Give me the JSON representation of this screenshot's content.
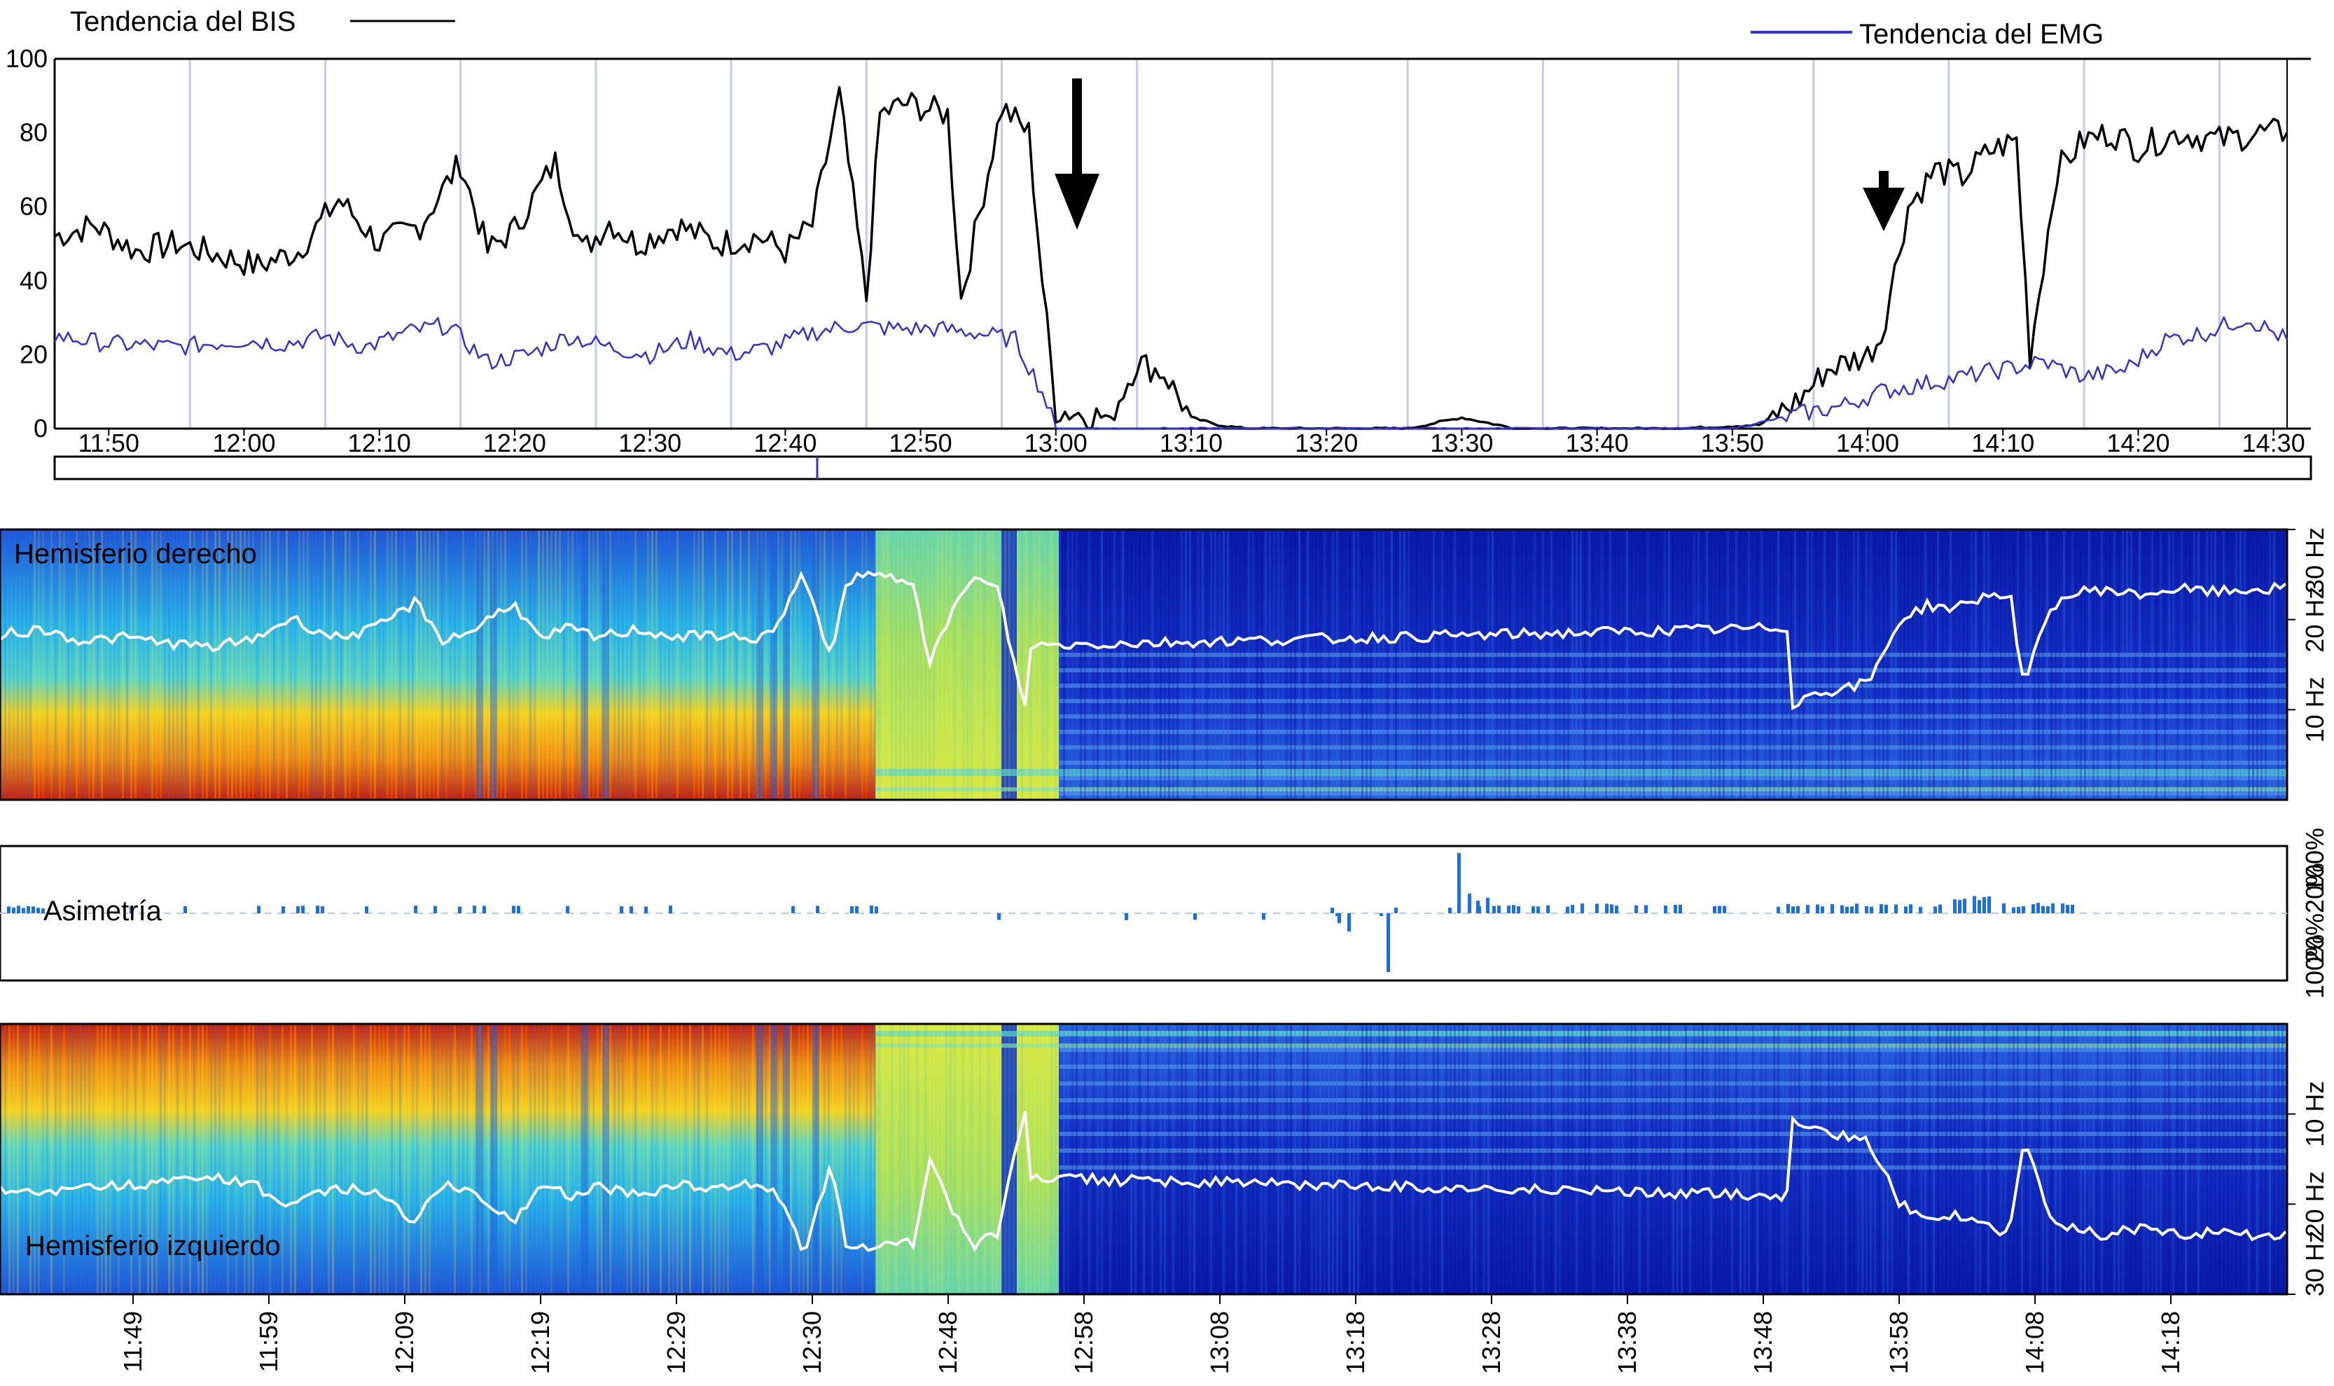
{
  "chart_data": [
    {
      "type": "line",
      "legend": [
        {
          "name": "Tendencia del BIS",
          "color": "#000000"
        },
        {
          "name": "Tendencia del EMG",
          "color": "#3333cc"
        }
      ],
      "ylim": [
        0,
        100
      ],
      "y_ticks": [
        "0",
        "20",
        "40",
        "60",
        "80",
        "100"
      ],
      "x_ticks": [
        "11:50",
        "12:00",
        "12:10",
        "12:20",
        "12:30",
        "12:40",
        "12:50",
        "13:00",
        "13:10",
        "13:20",
        "13:30",
        "13:40",
        "13:50",
        "14:00",
        "14:10",
        "14:20",
        "14:30"
      ],
      "x_range_minutes": [
        "11:46",
        "14:31"
      ],
      "series": [
        {
          "name": "Tendencia del BIS",
          "x": [
            "11:46",
            "11:49",
            "11:52",
            "11:55",
            "11:58",
            "12:01",
            "12:04",
            "12:07",
            "12:10",
            "12:13",
            "12:16",
            "12:18",
            "12:20",
            "12:23",
            "12:25",
            "12:27",
            "12:29",
            "12:32",
            "12:35",
            "12:38",
            "12:40",
            "12:42",
            "12:44",
            "12:46",
            "12:47",
            "12:49",
            "12:52",
            "12:53",
            "12:56",
            "12:58",
            "12:59",
            "13:00",
            "13:02",
            "13:04",
            "13:06",
            "13:08",
            "13:10",
            "13:12",
            "13:14",
            "13:20",
            "13:26",
            "13:30",
            "13:34",
            "13:40",
            "13:46",
            "13:52",
            "13:55",
            "13:57",
            "14:00",
            "14:01",
            "14:03",
            "14:05",
            "14:07",
            "14:09",
            "14:11",
            "14:12",
            "14:14",
            "14:16",
            "14:18",
            "14:20",
            "14:23",
            "14:26",
            "14:29",
            "14:31"
          ],
          "values": [
            52,
            55,
            48,
            50,
            47,
            44,
            48,
            62,
            50,
            55,
            72,
            48,
            54,
            72,
            48,
            56,
            50,
            55,
            50,
            52,
            48,
            55,
            90,
            35,
            85,
            88,
            85,
            35,
            87,
            80,
            40,
            5,
            4,
            3,
            18,
            15,
            3,
            1,
            0,
            0,
            0,
            3,
            0,
            0,
            0,
            1,
            8,
            16,
            20,
            25,
            60,
            70,
            68,
            75,
            78,
            20,
            70,
            78,
            80,
            76,
            80,
            78,
            80,
            80
          ]
        },
        {
          "name": "Tendencia del EMG",
          "x": [
            "11:46",
            "11:50",
            "11:55",
            "12:00",
            "12:03",
            "12:06",
            "12:09",
            "12:12",
            "12:15",
            "12:18",
            "12:21",
            "12:24",
            "12:27",
            "12:30",
            "12:33",
            "12:36",
            "12:39",
            "12:42",
            "12:45",
            "12:48",
            "12:51",
            "12:54",
            "12:57",
            "12:59",
            "13:00",
            "13:10",
            "13:30",
            "13:50",
            "13:55",
            "13:58",
            "14:01",
            "14:04",
            "14:07",
            "14:10",
            "14:13",
            "14:16",
            "14:19",
            "14:22",
            "14:25",
            "14:28",
            "14:31"
          ],
          "values": [
            25,
            23,
            22,
            24,
            23,
            25,
            22,
            26,
            28,
            18,
            20,
            25,
            22,
            20,
            24,
            20,
            22,
            26,
            28,
            27,
            27,
            26,
            24,
            10,
            0,
            0,
            0,
            0,
            4,
            6,
            10,
            12,
            14,
            16,
            18,
            14,
            16,
            24,
            26,
            30,
            24
          ]
        }
      ],
      "annotations": [
        {
          "shape": "arrow-down",
          "at": "13:00",
          "size": "large"
        },
        {
          "shape": "arrow-down",
          "at": "13:59",
          "size": "small"
        }
      ],
      "grid": "vertical lines, light lavender"
    },
    {
      "type": "heatmap",
      "label": "Hemisferio derecho",
      "y_ticks": [
        "10 Hz",
        "20 Hz",
        "30 Hz"
      ]
    },
    {
      "type": "bar",
      "label": "Asimetría",
      "y_ticks_upper": [
        "20%",
        "100%"
      ],
      "y_ticks_lower": [
        "20%",
        "100%"
      ]
    },
    {
      "type": "heatmap",
      "label": "Hemisferio izquierdo",
      "y_ticks": [
        "10 Hz",
        "20 Hz",
        "30 Hz"
      ]
    }
  ],
  "bottom_axis_ticks": [
    "11:49",
    "11:59",
    "12:09",
    "12:19",
    "12:29",
    "12:30",
    "12:48",
    "12:58",
    "13:08",
    "13:18",
    "13:28",
    "13:38",
    "13:48",
    "13:58",
    "14:08",
    "14:18"
  ],
  "colors": {
    "bis": "#000000",
    "emg": "#3333cc",
    "grid": "#c8c8ee",
    "spectral_white_line": "#ffffff",
    "asymmetry_bar": "#1a6ee6"
  }
}
